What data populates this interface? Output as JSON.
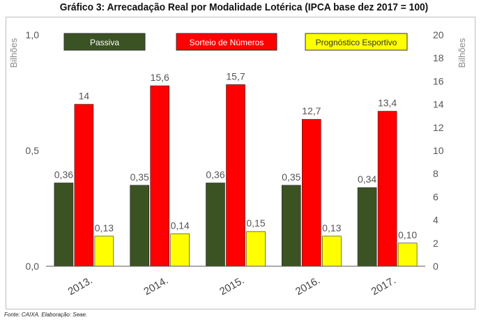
{
  "title": "Gráfico 3: Arrecadação Real por Modalidade Lotérica (IPCA base dez 2017 = 100)",
  "source": "Fonte: CAIXA. Elaboração: Seae.",
  "chart_data": {
    "type": "bar",
    "categories": [
      "2013.",
      "2014.",
      "2015.",
      "2016.",
      "2017."
    ],
    "series": [
      {
        "name": "Passiva",
        "axis": "left",
        "color": "#3b5323",
        "values": [
          0.36,
          0.35,
          0.36,
          0.35,
          0.34
        ],
        "labels": [
          "0,36",
          "0,35",
          "0,36",
          "0,35",
          "0,34"
        ]
      },
      {
        "name": "Sorteio de Números",
        "axis": "right",
        "color": "#ff0000",
        "values": [
          14,
          15.6,
          15.7,
          12.7,
          13.4
        ],
        "labels": [
          "14",
          "15,6",
          "15,7",
          "12,7",
          "13,4"
        ]
      },
      {
        "name": "Prognóstico Esportivo",
        "axis": "left",
        "color": "#ffff00",
        "values": [
          0.13,
          0.14,
          0.15,
          0.13,
          0.1
        ],
        "labels": [
          "0,13",
          "0,14",
          "0,15",
          "0,13",
          "0,10"
        ]
      }
    ],
    "y_left": {
      "label": "Bilhões",
      "range": [
        0,
        1
      ],
      "ticks": [
        0,
        0.5,
        1
      ],
      "tick_labels": [
        "0,0",
        "0,5",
        "1,0"
      ]
    },
    "y_right": {
      "label": "Bilhões",
      "range": [
        0,
        20
      ],
      "ticks": [
        0,
        2,
        4,
        6,
        8,
        10,
        12,
        14,
        16,
        18,
        20
      ],
      "tick_labels": [
        "0",
        "2",
        "4",
        "6",
        "8",
        "10",
        "12",
        "14",
        "16",
        "18",
        "20"
      ]
    },
    "legend_position": "top",
    "grid": false
  }
}
